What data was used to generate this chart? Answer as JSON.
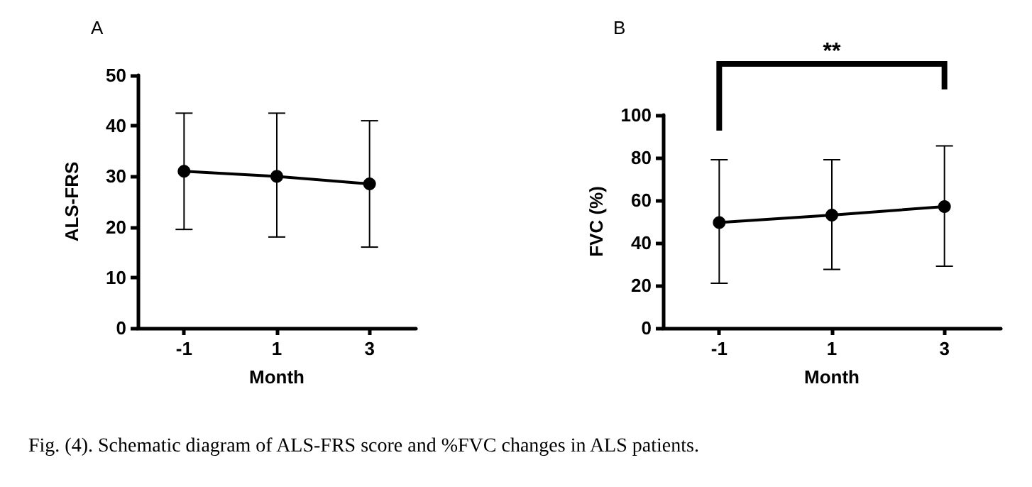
{
  "chart_data": [
    {
      "type": "line",
      "title": "A",
      "xlabel": "Month",
      "ylabel": "ALS-FRS",
      "categories": [
        "-1",
        "1",
        "3"
      ],
      "series": [
        {
          "color": "#000000",
          "values": [
            31,
            30,
            28.5
          ],
          "errors": [
            [
              19.5,
              42.5
            ],
            [
              18,
              42.5
            ],
            [
              16,
              41
            ]
          ]
        }
      ],
      "ylim": [
        0,
        50
      ],
      "yticks": [
        0,
        10,
        20,
        30,
        40,
        50
      ],
      "marker": "circle",
      "line_style": "solid",
      "annotations": [
        "Fig. (4). Schematic diagram of ALS-FRS score and %FVC changes in ALS patients."
      ]
    },
    {
      "type": "line",
      "title": "B",
      "xlabel": "Month",
      "ylabel": "FVC (%)",
      "categories": [
        "-1",
        "1",
        "3"
      ],
      "series": [
        {
          "color": "#000000",
          "values": [
            49.5,
            53,
            57
          ],
          "errors": [
            [
              21,
              79
            ],
            [
              27.5,
              79
            ],
            [
              29,
              85.5
            ]
          ]
        }
      ],
      "ylim": [
        0,
        100
      ],
      "yticks": [
        0,
        20,
        40,
        60,
        80,
        100
      ],
      "marker": "circle",
      "line_style": "solid",
      "annotations": [
        "**"
      ]
    }
  ]
}
